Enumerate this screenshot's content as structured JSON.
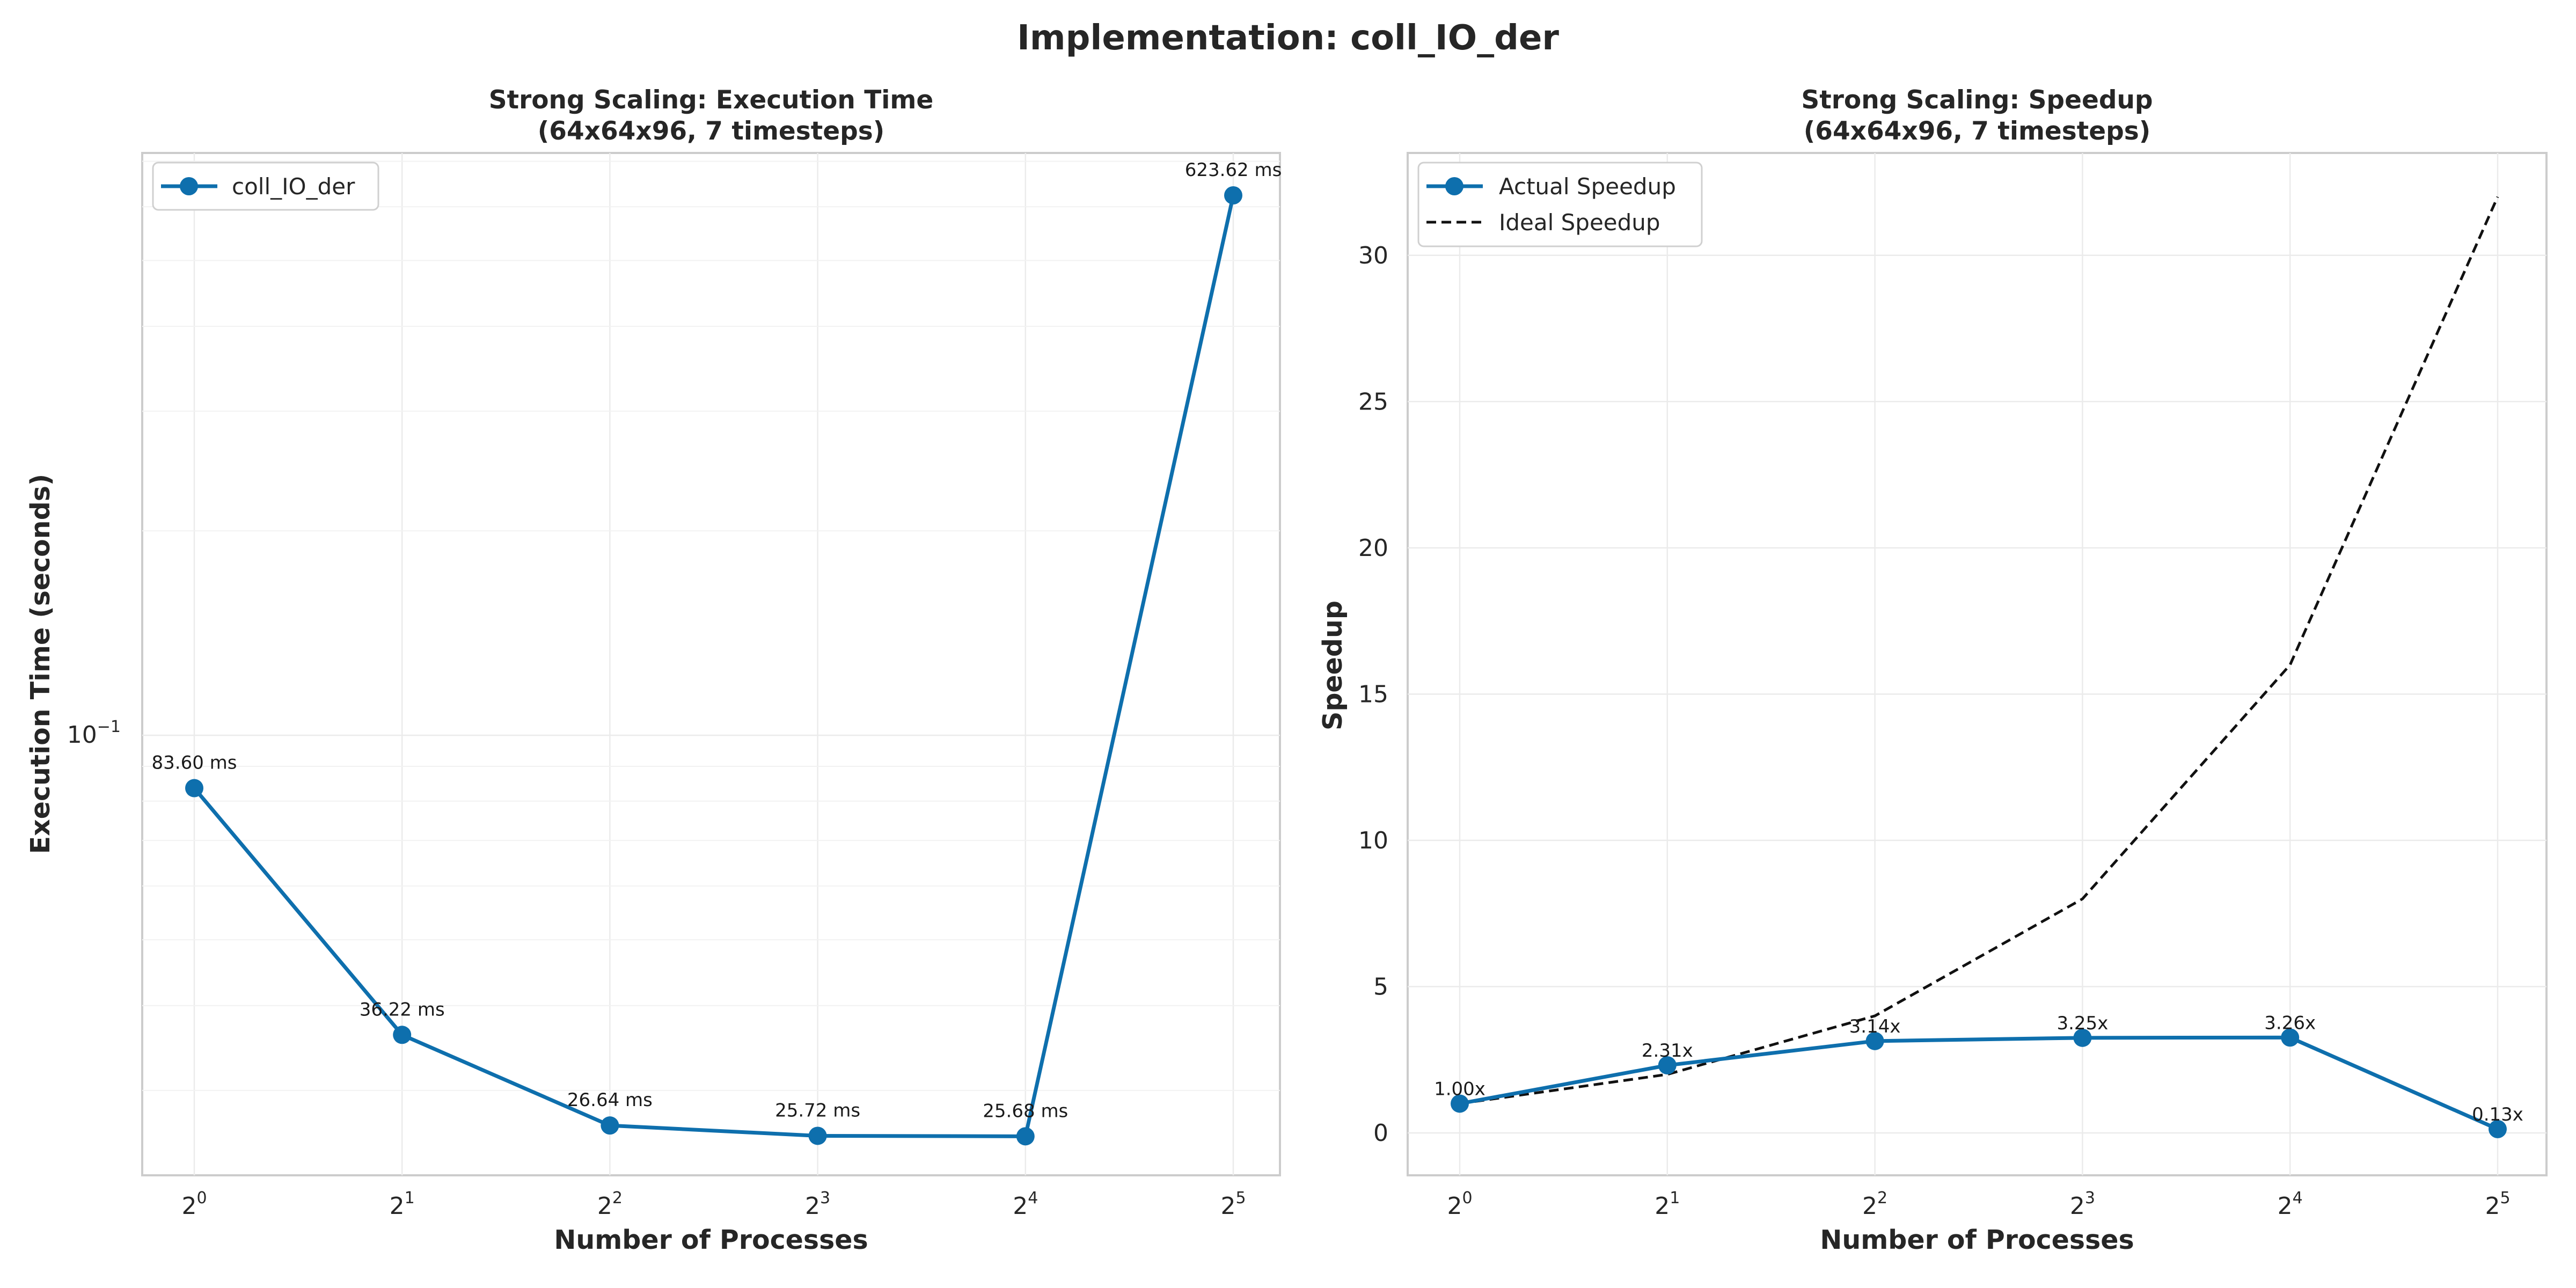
{
  "figure_title": "Implementation: coll_IO_der",
  "colors": {
    "actual": "#0e6fad",
    "ideal": "#111111"
  },
  "chart_data": [
    {
      "type": "line",
      "title_line1": "Strong Scaling: Execution Time",
      "title_line2": "(64x64x96, 7 timesteps)",
      "xlabel": "Number of Processes",
      "ylabel": "Execution Time (seconds)",
      "x_scale": "log2",
      "y_scale": "log10",
      "x": [
        1,
        2,
        4,
        8,
        16,
        32
      ],
      "x_tick_labels": [
        {
          "base": "2",
          "exp": "0"
        },
        {
          "base": "2",
          "exp": "1"
        },
        {
          "base": "2",
          "exp": "2"
        },
        {
          "base": "2",
          "exp": "3"
        },
        {
          "base": "2",
          "exp": "4"
        },
        {
          "base": "2",
          "exp": "5"
        }
      ],
      "y_tick_labels": [
        {
          "value": 0.1,
          "base": "10",
          "exp": "−1"
        }
      ],
      "ylim": [
        0.0225,
        0.72
      ],
      "series": [
        {
          "name": "coll_IO_der",
          "values": [
            0.0836,
            0.03622,
            0.02664,
            0.02572,
            0.02568,
            0.62362
          ],
          "data_labels": [
            "83.60 ms",
            "36.22 ms",
            "26.64 ms",
            "25.72 ms",
            "25.68 ms",
            "623.62 ms"
          ]
        }
      ],
      "legend": "upper-left",
      "grid": true
    },
    {
      "type": "line",
      "title_line1": "Strong Scaling: Speedup",
      "title_line2": "(64x64x96, 7 timesteps)",
      "xlabel": "Number of Processes",
      "ylabel": "Speedup",
      "x_scale": "log2",
      "y_scale": "linear",
      "x": [
        1,
        2,
        4,
        8,
        16,
        32
      ],
      "x_tick_labels": [
        {
          "base": "2",
          "exp": "0"
        },
        {
          "base": "2",
          "exp": "1"
        },
        {
          "base": "2",
          "exp": "2"
        },
        {
          "base": "2",
          "exp": "3"
        },
        {
          "base": "2",
          "exp": "4"
        },
        {
          "base": "2",
          "exp": "5"
        }
      ],
      "y_ticks": [
        0,
        5,
        10,
        15,
        20,
        25,
        30
      ],
      "y_tick_labels": [
        "0",
        "5",
        "10",
        "15",
        "20",
        "25",
        "30"
      ],
      "ylim": [
        -1.45,
        33.5
      ],
      "series": [
        {
          "name": "Actual Speedup",
          "values": [
            1.0,
            2.31,
            3.14,
            3.25,
            3.26,
            0.13
          ],
          "data_labels": [
            "1.00x",
            "2.31x",
            "3.14x",
            "3.25x",
            "3.26x",
            "0.13x"
          ]
        },
        {
          "name": "Ideal Speedup",
          "values": [
            1,
            2,
            4,
            8,
            16,
            32
          ]
        }
      ],
      "legend": "upper-left",
      "grid": true
    }
  ]
}
